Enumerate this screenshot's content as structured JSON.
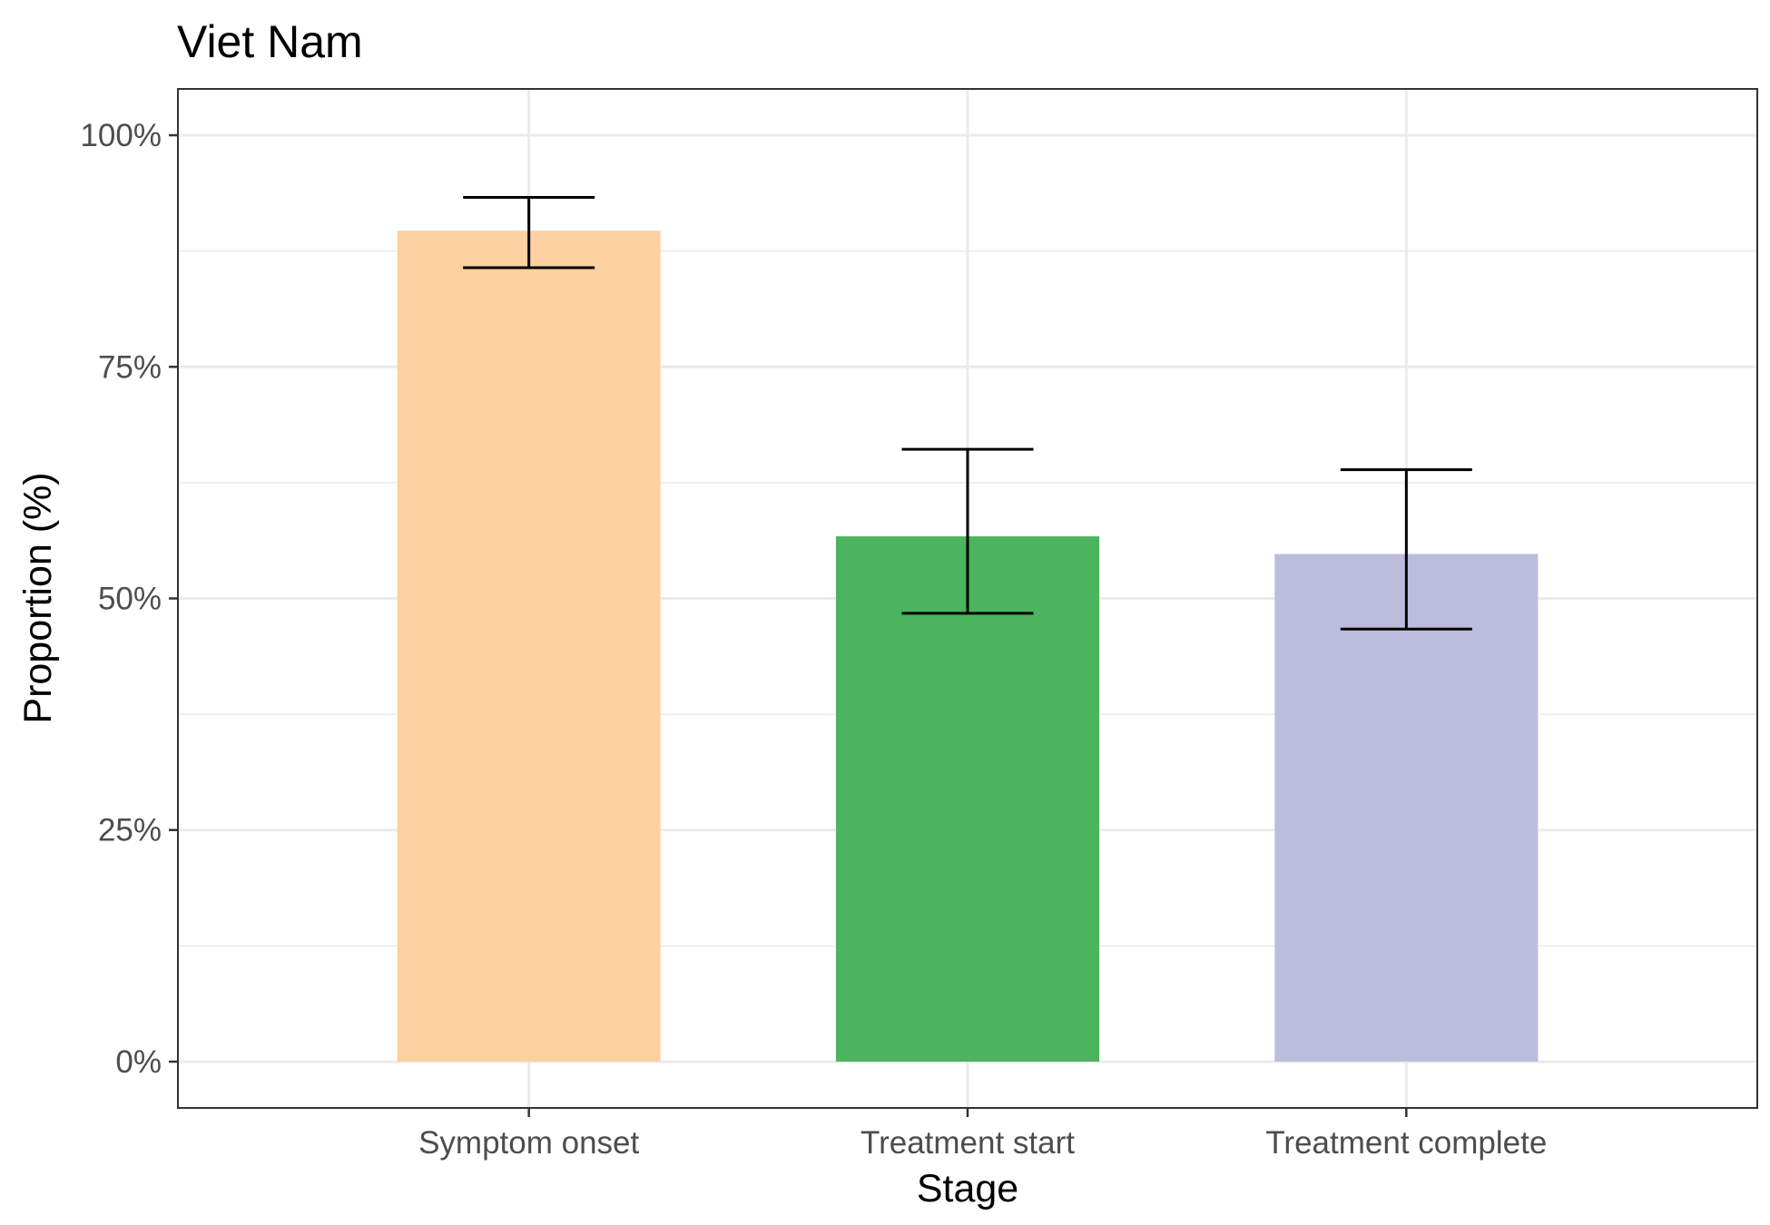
{
  "chart_data": {
    "type": "bar",
    "title": "Viet Nam",
    "xlabel": "Stage",
    "ylabel": "Proportion (%)",
    "categories": [
      "Symptom onset",
      "Treatment start",
      "Treatment complete"
    ],
    "values": [
      89.7,
      56.7,
      54.8
    ],
    "error_low": [
      85.7,
      48.4,
      46.7
    ],
    "error_high": [
      93.3,
      66.1,
      63.9
    ],
    "colors": [
      "#fcd0a1",
      "#4cb35e",
      "#bcbddc"
    ],
    "ylim": [
      -5,
      105
    ],
    "yticks": [
      0,
      25,
      50,
      75,
      100
    ],
    "ytick_labels": [
      "0%",
      "25%",
      "50%",
      "75%",
      "100%"
    ],
    "grid": true,
    "legend": "none"
  }
}
